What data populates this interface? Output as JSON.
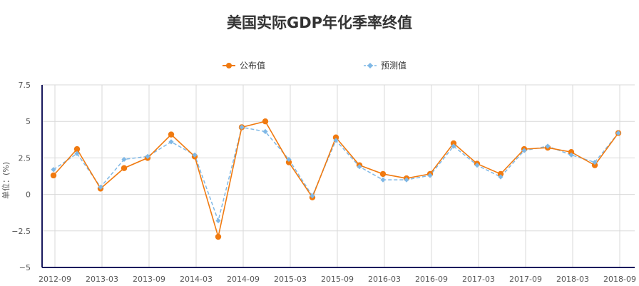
{
  "chart_data": {
    "type": "line",
    "title": "美国实际GDP年化季率终值",
    "ylabel": "单位：(%)",
    "xlabel": "",
    "ylim": [
      -5,
      7.5
    ],
    "y_ticks": [
      "7.5",
      "5",
      "2.5",
      "0",
      "−2.5",
      "−5"
    ],
    "y_tick_values": [
      7.5,
      5,
      2.5,
      0,
      -2.5,
      -5
    ],
    "x_tick_labels": [
      "2012-09",
      "2013-03",
      "2013-09",
      "2014-03",
      "2014-09",
      "2015-03",
      "2015-09",
      "2016-03",
      "2016-09",
      "2017-03",
      "2017-09",
      "2018-03",
      "2018-09"
    ],
    "grid": true,
    "legend_position": "top-center",
    "series": [
      {
        "name": "公布值",
        "color": "#f07a10",
        "style": "solid",
        "marker": "circle",
        "values": [
          1.3,
          3.1,
          0.4,
          1.8,
          2.5,
          4.1,
          2.6,
          -2.9,
          4.6,
          5.0,
          2.2,
          -0.2,
          3.9,
          2.0,
          1.4,
          1.1,
          1.4,
          3.5,
          2.1,
          1.4,
          3.1,
          3.2,
          2.9,
          2.0,
          4.2
        ]
      },
      {
        "name": "预测值",
        "color": "#7fb8e6",
        "style": "dashed",
        "marker": "diamond",
        "values": [
          1.7,
          2.8,
          0.5,
          2.4,
          2.6,
          3.6,
          2.7,
          -1.8,
          4.6,
          4.3,
          2.4,
          -0.1,
          3.7,
          1.9,
          1.0,
          1.0,
          1.3,
          3.3,
          2.0,
          1.2,
          3.0,
          3.3,
          2.7,
          2.2,
          4.2
        ]
      }
    ]
  }
}
